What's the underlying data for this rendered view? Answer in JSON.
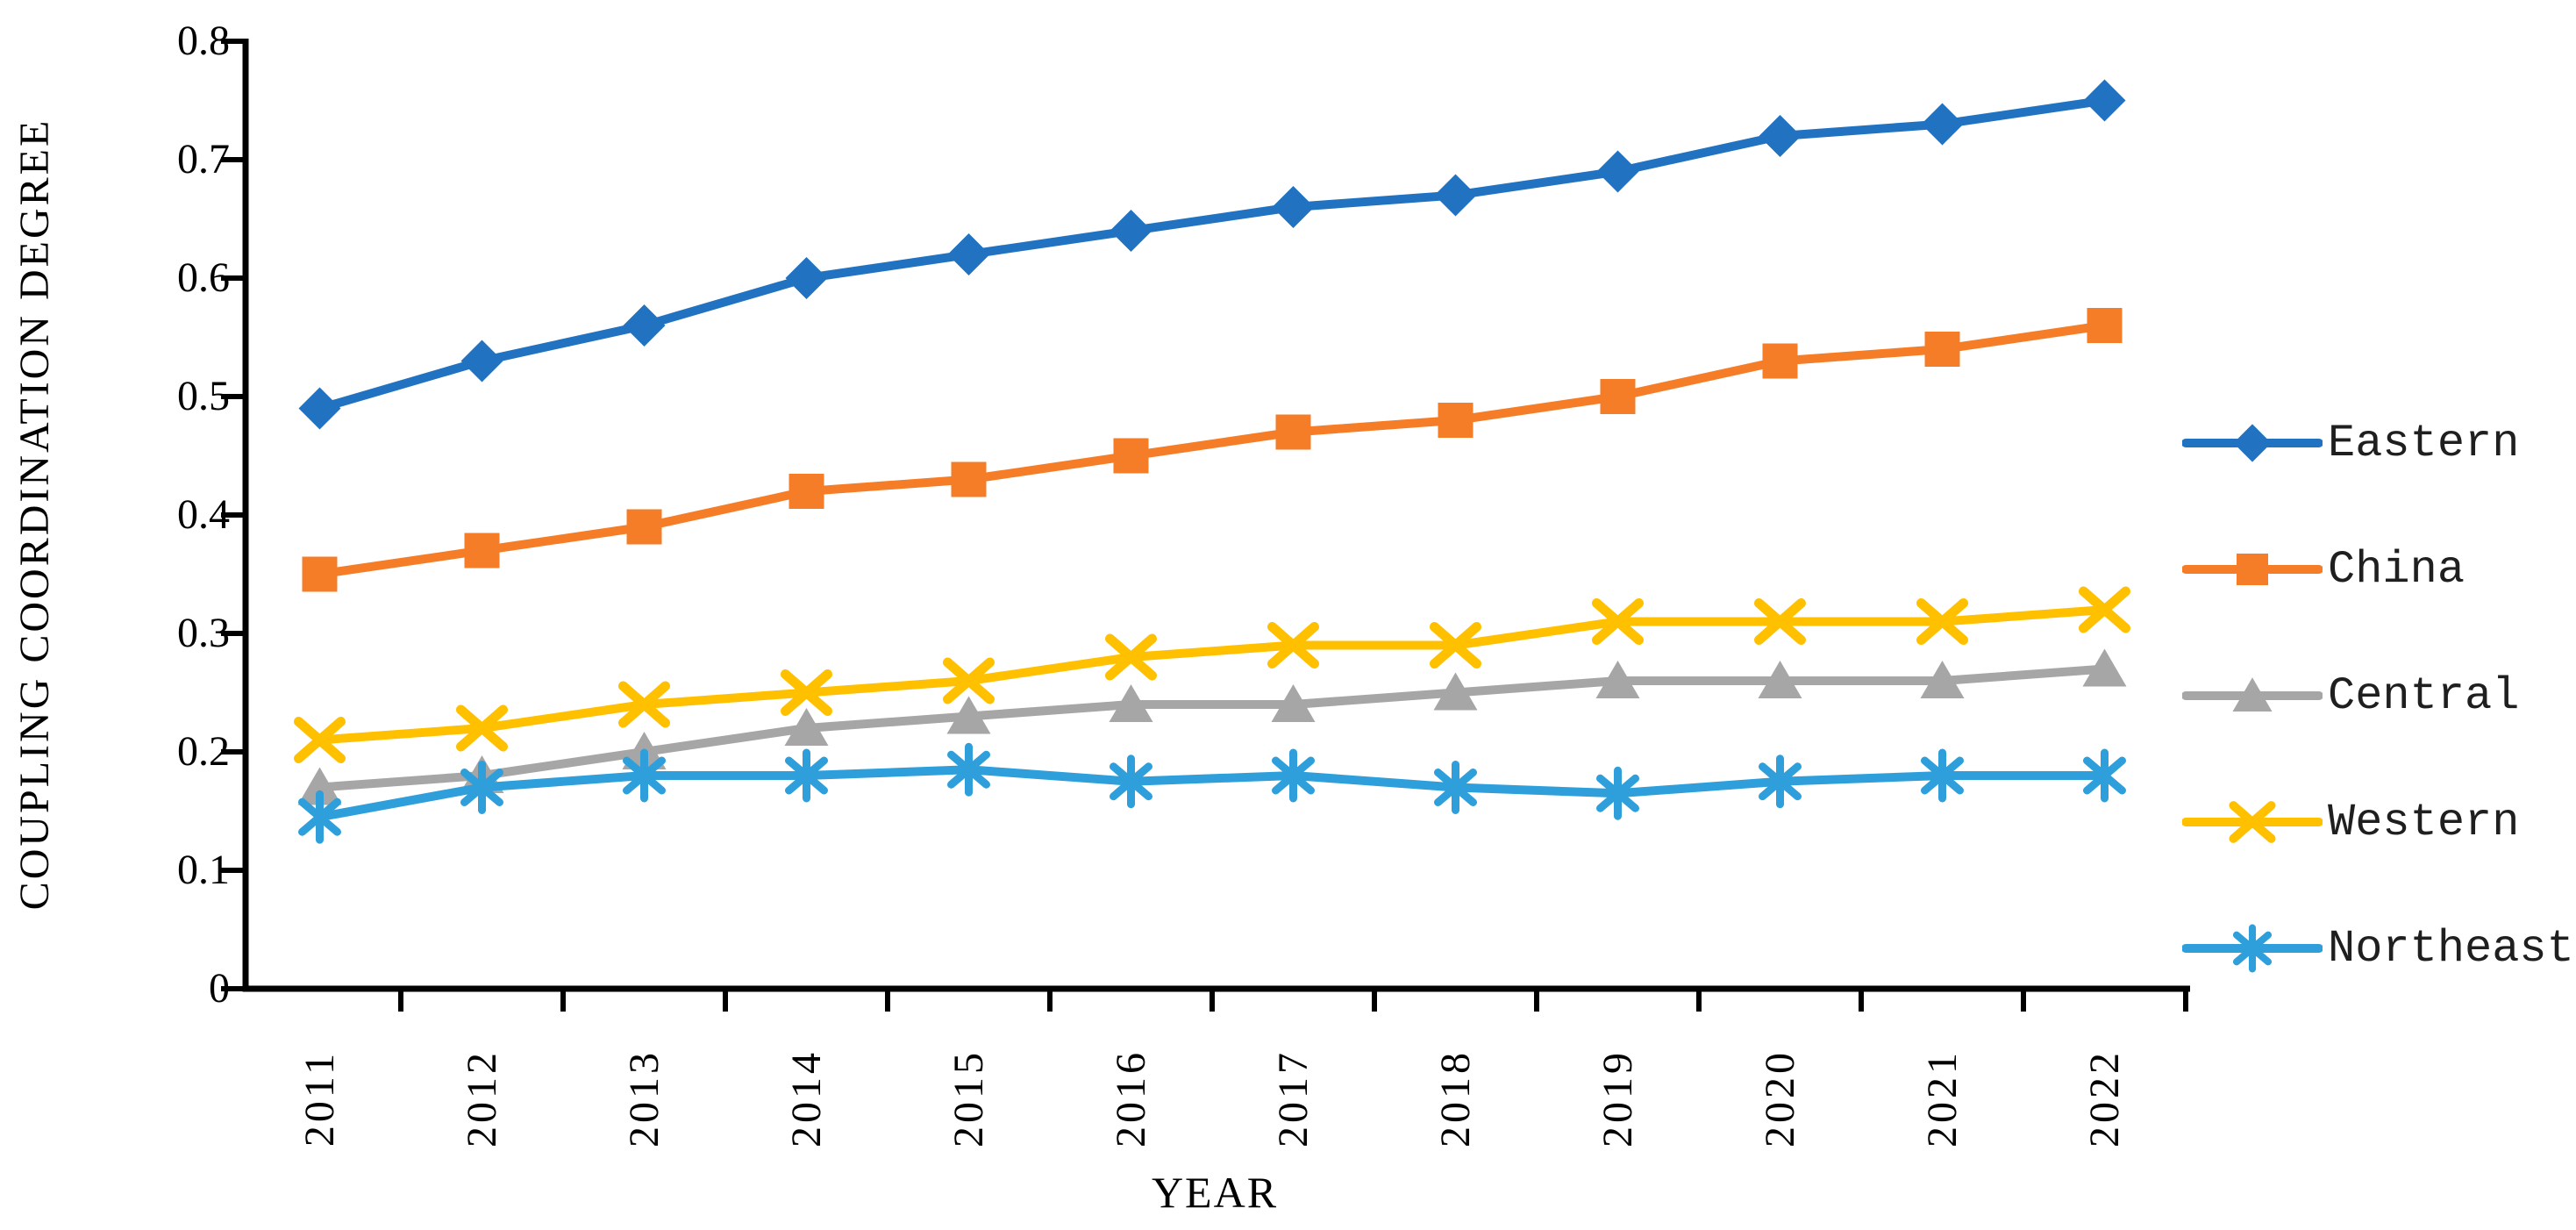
{
  "figure": {
    "y_axis_label": "COUPLING COORDINATION DEGREE",
    "x_axis_label": "YEAR"
  },
  "chart_data": {
    "type": "line",
    "title": "",
    "xlabel": "YEAR",
    "ylabel": "COUPLING COORDINATION DEGREE",
    "categories": [
      "2011",
      "2012",
      "2013",
      "2014",
      "2015",
      "2016",
      "2017",
      "2018",
      "2019",
      "2020",
      "2021",
      "2022"
    ],
    "ylim": [
      0,
      0.8
    ],
    "y_ticks": [
      "0",
      "0.1",
      "0.2",
      "0.3",
      "0.4",
      "0.5",
      "0.6",
      "0.7",
      "0.8"
    ],
    "grid": false,
    "legend_position": "right",
    "axis_color": "#000000",
    "series": [
      {
        "name": "Eastern",
        "marker": "diamond",
        "color": "#2173C2",
        "values": [
          0.49,
          0.53,
          0.56,
          0.6,
          0.62,
          0.64,
          0.66,
          0.67,
          0.69,
          0.72,
          0.73,
          0.75
        ]
      },
      {
        "name": "China",
        "marker": "square",
        "color": "#F67D28",
        "values": [
          0.35,
          0.37,
          0.39,
          0.42,
          0.43,
          0.45,
          0.47,
          0.48,
          0.5,
          0.53,
          0.54,
          0.56
        ]
      },
      {
        "name": "Central",
        "marker": "triangle",
        "color": "#A6A6A6",
        "values": [
          0.17,
          0.18,
          0.2,
          0.22,
          0.23,
          0.24,
          0.24,
          0.25,
          0.26,
          0.26,
          0.26,
          0.27
        ]
      },
      {
        "name": "Western",
        "marker": "x",
        "color": "#FFC000",
        "values": [
          0.21,
          0.22,
          0.24,
          0.25,
          0.26,
          0.28,
          0.29,
          0.29,
          0.31,
          0.31,
          0.31,
          0.32
        ]
      },
      {
        "name": "Northeast",
        "marker": "asterisk",
        "color": "#2E9FDB",
        "values": [
          0.145,
          0.17,
          0.18,
          0.18,
          0.185,
          0.175,
          0.18,
          0.17,
          0.165,
          0.175,
          0.18,
          0.18
        ]
      }
    ]
  }
}
